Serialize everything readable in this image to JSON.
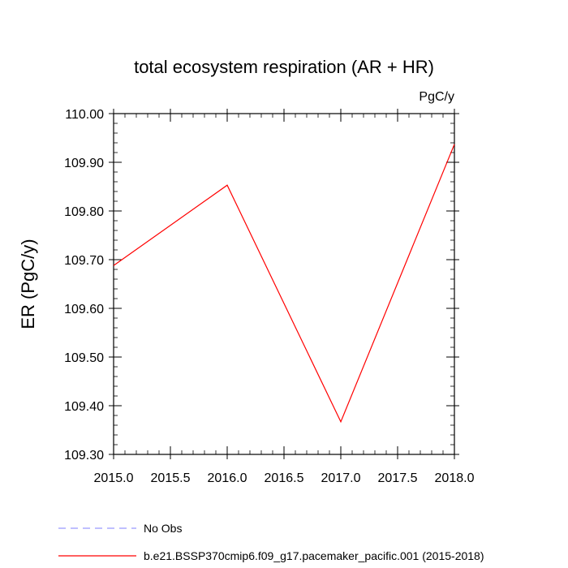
{
  "chart_data": {
    "type": "line",
    "title": "total ecosystem respiration (AR + HR)",
    "units": "PgC/y",
    "xlabel": "",
    "ylabel": "ER  (PgC/y)",
    "xlim": [
      2015.0,
      2018.0
    ],
    "ylim": [
      109.3,
      110.0
    ],
    "x_ticks": [
      "2015.0",
      "2015.5",
      "2016.0",
      "2016.5",
      "2017.0",
      "2017.5",
      "2018.0"
    ],
    "y_ticks": [
      "109.30",
      "109.40",
      "109.50",
      "109.60",
      "109.70",
      "109.80",
      "109.90",
      "110.00"
    ],
    "grid": false,
    "legend_position": "bottom",
    "series": [
      {
        "name": "b.e21.BSSP370cmip6.f09_g17.pacemaker_pacific.001 (2015-2018)",
        "color": "#ff0000",
        "style": "solid",
        "x": [
          2015,
          2016,
          2017,
          2018
        ],
        "values": [
          109.688,
          109.853,
          109.367,
          109.937
        ]
      }
    ],
    "legend": [
      {
        "label": "No Obs",
        "color": "#9999ff",
        "style": "dashed"
      },
      {
        "label": "b.e21.BSSP370cmip6.f09_g17.pacemaker_pacific.001 (2015-2018)",
        "color": "#ff0000",
        "style": "solid"
      }
    ]
  }
}
